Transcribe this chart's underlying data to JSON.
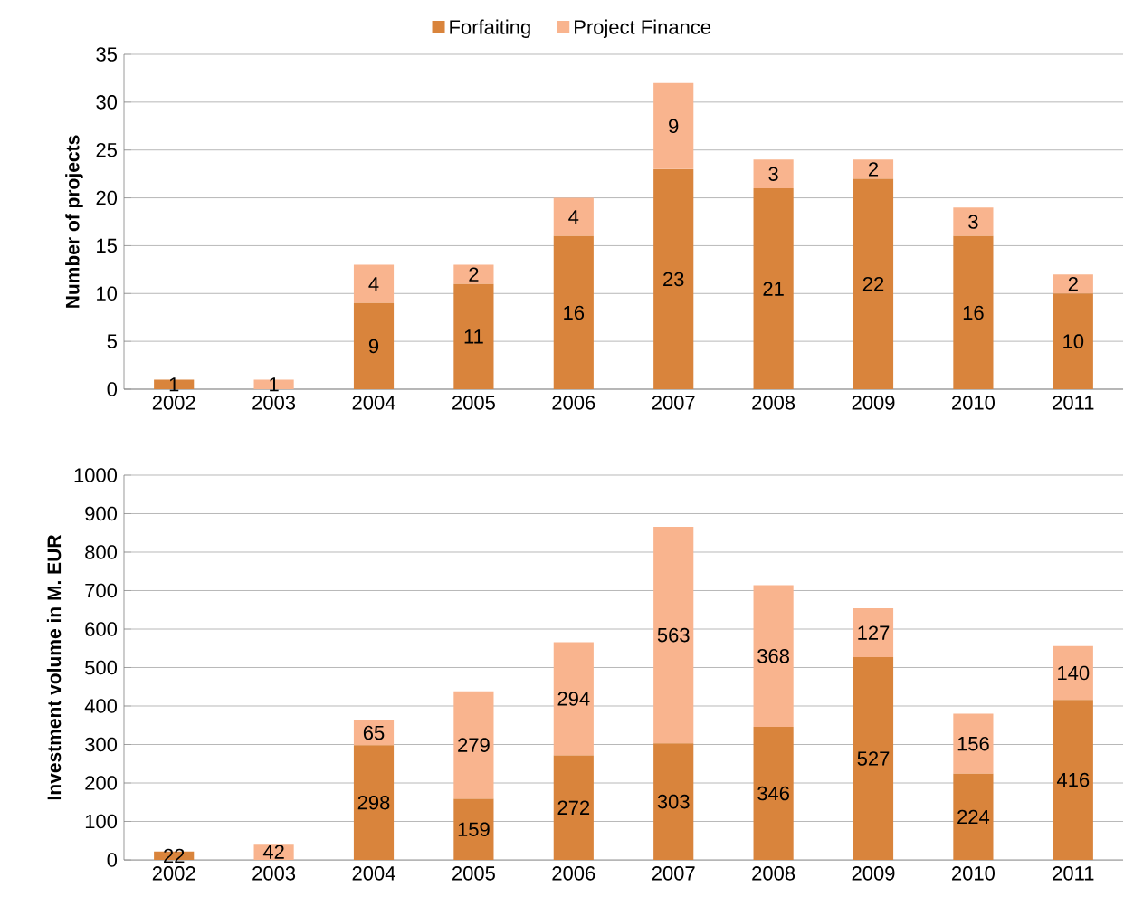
{
  "chart_data": [
    {
      "type": "bar",
      "stacked": true,
      "ylabel": "Number of projects",
      "categories": [
        "2002",
        "2003",
        "2004",
        "2005",
        "2006",
        "2007",
        "2008",
        "2009",
        "2010",
        "2011"
      ],
      "ylim": [
        0,
        35
      ],
      "yticks": [
        0,
        5,
        10,
        15,
        20,
        25,
        30,
        35
      ],
      "grid": "y",
      "legend": "top",
      "series": [
        {
          "name": "Forfaiting",
          "color": "#d9843c",
          "values": [
            1,
            0,
            9,
            11,
            16,
            23,
            21,
            22,
            16,
            10
          ],
          "value_labels": [
            "1",
            null,
            "9",
            "11",
            "16",
            "23",
            "21",
            "22",
            "16",
            "10"
          ]
        },
        {
          "name": "Project Finance",
          "color": "#f9b48e",
          "values": [
            0,
            1,
            4,
            2,
            4,
            9,
            3,
            2,
            3,
            2
          ],
          "value_labels": [
            null,
            "1",
            "4",
            "2",
            "4",
            "9",
            "3",
            "2",
            "3",
            "2"
          ]
        }
      ]
    },
    {
      "type": "bar",
      "stacked": true,
      "ylabel": "Investment volume in M. EUR",
      "categories": [
        "2002",
        "2003",
        "2004",
        "2005",
        "2006",
        "2007",
        "2008",
        "2009",
        "2010",
        "2011"
      ],
      "ylim": [
        0,
        1000
      ],
      "yticks": [
        0,
        100,
        200,
        300,
        400,
        500,
        600,
        700,
        800,
        900,
        1000
      ],
      "grid": "y",
      "series": [
        {
          "color": "#d9843c",
          "values": [
            22,
            0,
            298,
            159,
            272,
            303,
            346,
            527,
            224,
            416
          ],
          "value_labels": [
            "22",
            null,
            "298",
            "159",
            "272",
            "303",
            "346",
            "527",
            "224",
            "416"
          ]
        },
        {
          "color": "#f9b48e",
          "values": [
            0,
            42,
            65,
            279,
            294,
            563,
            368,
            127,
            156,
            140
          ],
          "value_labels": [
            null,
            "42",
            "65",
            "279",
            "294",
            "563",
            "368",
            "127",
            "156",
            "140"
          ]
        }
      ]
    }
  ]
}
